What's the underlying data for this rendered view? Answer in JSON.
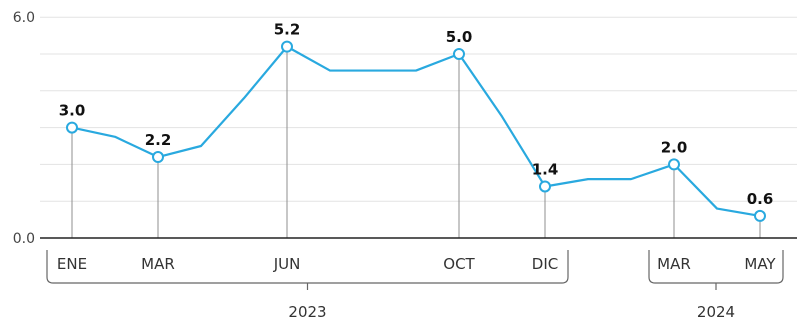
{
  "chart_data": {
    "type": "line",
    "title": "",
    "xlabel": "",
    "ylabel": "",
    "ylim": [
      0,
      6
    ],
    "y_ticks": [
      {
        "value": 0,
        "label": "0.0"
      },
      {
        "value": 6,
        "label": "6.0"
      }
    ],
    "grid": true,
    "color": "#29a9df",
    "series": [
      {
        "values": [
          3.0,
          2.75,
          2.2,
          2.5,
          3.8,
          5.2,
          4.55,
          4.55,
          4.55,
          5.0,
          3.3,
          1.4,
          1.6,
          1.6,
          2.0,
          0.8,
          0.6
        ]
      }
    ],
    "labeled_points": [
      {
        "index": 0,
        "label": "3.0"
      },
      {
        "index": 2,
        "label": "2.2"
      },
      {
        "index": 5,
        "label": "5.2"
      },
      {
        "index": 9,
        "label": "5.0"
      },
      {
        "index": 11,
        "label": "1.4"
      },
      {
        "index": 14,
        "label": "2.0"
      },
      {
        "index": 16,
        "label": "0.6"
      }
    ],
    "x_ticks": [
      {
        "index": 0,
        "label": "ENE"
      },
      {
        "index": 2,
        "label": "MAR"
      },
      {
        "index": 5,
        "label": "JUN"
      },
      {
        "index": 9,
        "label": "OCT"
      },
      {
        "index": 11,
        "label": "DIC"
      },
      {
        "index": 14,
        "label": "MAR"
      },
      {
        "index": 16,
        "label": "MAY"
      }
    ],
    "year_groups": [
      {
        "label": "2023",
        "from": 0,
        "to": 11
      },
      {
        "label": "2024",
        "from": 14,
        "to": 16
      }
    ]
  }
}
